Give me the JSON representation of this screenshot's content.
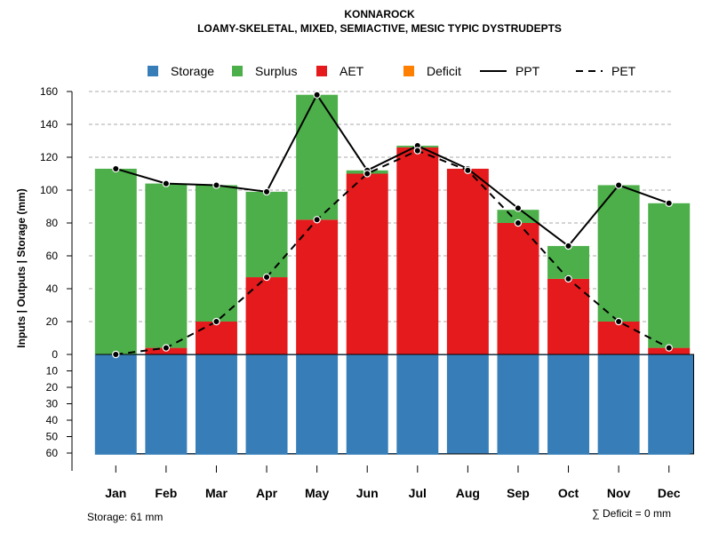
{
  "chart_data": {
    "type": "bar",
    "title": "KONNAROCK",
    "subtitle": "LOAMY-SKELETAL, MIXED, SEMIACTIVE, MESIC TYPIC DYSTRUDEPTS",
    "ylabel": "Inputs | Outputs | Storage    (mm)",
    "categories": [
      "Jan",
      "Feb",
      "Mar",
      "Apr",
      "May",
      "Jun",
      "Jul",
      "Aug",
      "Sep",
      "Oct",
      "Nov",
      "Dec"
    ],
    "ylim_top": [
      0,
      160
    ],
    "ylim_bottom": [
      0,
      60
    ],
    "yticks_top": [
      "0",
      "20",
      "40",
      "60",
      "80",
      "100",
      "120",
      "140",
      "160"
    ],
    "yticks_bottom": [
      "10",
      "20",
      "30",
      "40",
      "50",
      "60"
    ],
    "legend": [
      {
        "name": "Storage",
        "kind": "box",
        "color": "#377EB8"
      },
      {
        "name": "Surplus",
        "kind": "box",
        "color": "#4DAF4A"
      },
      {
        "name": "AET",
        "kind": "box",
        "color": "#E41A1C"
      },
      {
        "name": "Deficit",
        "kind": "box",
        "color": "#FF7F00"
      },
      {
        "name": "PPT",
        "kind": "solid-line",
        "color": "#000000"
      },
      {
        "name": "PET",
        "kind": "dashed-line",
        "color": "#000000"
      }
    ],
    "series": [
      {
        "name": "AET",
        "color": "#E41A1C",
        "values": [
          0,
          4,
          20,
          47,
          82,
          110,
          126,
          113,
          80,
          46,
          20,
          4
        ]
      },
      {
        "name": "Surplus",
        "color": "#4DAF4A",
        "values": [
          113,
          100,
          83,
          52,
          76,
          2,
          1,
          0,
          8,
          20,
          83,
          88
        ]
      },
      {
        "name": "Deficit",
        "color": "#FF7F00",
        "values": [
          0,
          0,
          0,
          0,
          0,
          0,
          0,
          0,
          0,
          0,
          0,
          0
        ]
      },
      {
        "name": "Storage",
        "color": "#377EB8",
        "values": [
          61,
          61,
          61,
          61,
          61,
          61,
          61,
          60,
          61,
          61,
          61,
          61
        ]
      },
      {
        "name": "PPT",
        "color": "#000000",
        "values": [
          113,
          104,
          103,
          99,
          158,
          112,
          127,
          113,
          89,
          66,
          103,
          92
        ]
      },
      {
        "name": "PET",
        "color": "#000000",
        "values": [
          0,
          4,
          20,
          47,
          82,
          110,
          124,
          112,
          80,
          46,
          20,
          4
        ]
      }
    ],
    "storage_note": "Storage: 61 mm",
    "deficit_note": "∑ Deficit = 0 mm",
    "grid": true
  }
}
